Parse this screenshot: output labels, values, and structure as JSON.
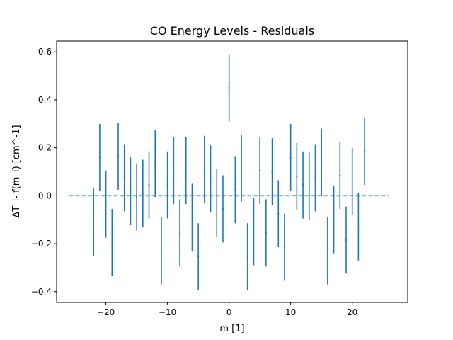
{
  "chart_data": {
    "type": "scatter",
    "title": "CO Energy Levels - Residuals",
    "xlabel": "m [1]",
    "ylabel": "ΔT_i- f(m_i) [cm^-1]",
    "xlim": [
      -28,
      29
    ],
    "ylim": [
      -0.445,
      0.645
    ],
    "xticks": [
      -20,
      -10,
      0,
      10,
      20
    ],
    "xtick_labels": [
      "−20",
      "−10",
      "0",
      "10",
      "20"
    ],
    "yticks": [
      -0.4,
      -0.2,
      0.0,
      0.2,
      0.4,
      0.6
    ],
    "ytick_labels": [
      "−0.4",
      "−0.2",
      "0.0",
      "0.2",
      "0.4",
      "0.6"
    ],
    "grid": false,
    "series": [
      {
        "color": "#1f77b4",
        "points": [
          {
            "x": -22,
            "y": -0.11,
            "err": 0.14
          },
          {
            "x": -21,
            "y": 0.16,
            "err": 0.14
          },
          {
            "x": -20,
            "y": -0.035,
            "err": 0.14
          },
          {
            "x": -19,
            "y": -0.195,
            "err": 0.14
          },
          {
            "x": -18,
            "y": 0.165,
            "err": 0.14
          },
          {
            "x": -17,
            "y": 0.075,
            "err": 0.14
          },
          {
            "x": -16,
            "y": 0.02,
            "err": 0.14
          },
          {
            "x": -15,
            "y": -0.005,
            "err": 0.14
          },
          {
            "x": -14,
            "y": 0.01,
            "err": 0.14
          },
          {
            "x": -13,
            "y": 0.045,
            "err": 0.14
          },
          {
            "x": -12,
            "y": 0.135,
            "err": 0.14
          },
          {
            "x": -11,
            "y": -0.23,
            "err": 0.14
          },
          {
            "x": -10,
            "y": 0.045,
            "err": 0.14
          },
          {
            "x": -9,
            "y": 0.105,
            "err": 0.14
          },
          {
            "x": -8,
            "y": -0.155,
            "err": 0.14
          },
          {
            "x": -7,
            "y": 0.105,
            "err": 0.14
          },
          {
            "x": -6,
            "y": -0.09,
            "err": 0.14
          },
          {
            "x": -5,
            "y": -0.255,
            "err": 0.14
          },
          {
            "x": -4,
            "y": 0.11,
            "err": 0.14
          },
          {
            "x": -3,
            "y": 0.07,
            "err": 0.14
          },
          {
            "x": -2,
            "y": -0.03,
            "err": 0.14
          },
          {
            "x": -1,
            "y": -0.055,
            "err": 0.14
          },
          {
            "x": 0,
            "y": 0.45,
            "err": 0.14
          },
          {
            "x": 1,
            "y": 0.025,
            "err": 0.14
          },
          {
            "x": 2,
            "y": 0.115,
            "err": 0.14
          },
          {
            "x": 3,
            "y": -0.255,
            "err": 0.14
          },
          {
            "x": 4,
            "y": -0.15,
            "err": 0.14
          },
          {
            "x": 5,
            "y": 0.105,
            "err": 0.14
          },
          {
            "x": 6,
            "y": -0.155,
            "err": 0.14
          },
          {
            "x": 7,
            "y": 0.1,
            "err": 0.14
          },
          {
            "x": 8,
            "y": -0.075,
            "err": 0.14
          },
          {
            "x": 9,
            "y": -0.215,
            "err": 0.14
          },
          {
            "x": 10,
            "y": 0.16,
            "err": 0.14
          },
          {
            "x": 11,
            "y": 0.08,
            "err": 0.14
          },
          {
            "x": 12,
            "y": 0.045,
            "err": 0.14
          },
          {
            "x": 13,
            "y": 0.04,
            "err": 0.14
          },
          {
            "x": 14,
            "y": 0.075,
            "err": 0.14
          },
          {
            "x": 15,
            "y": 0.14,
            "err": 0.14
          },
          {
            "x": 16,
            "y": -0.23,
            "err": 0.14
          },
          {
            "x": 17,
            "y": -0.1,
            "err": 0.14
          },
          {
            "x": 18,
            "y": 0.085,
            "err": 0.14
          },
          {
            "x": 19,
            "y": -0.185,
            "err": 0.14
          },
          {
            "x": 20,
            "y": 0.06,
            "err": 0.14
          },
          {
            "x": 21,
            "y": -0.13,
            "err": 0.14
          },
          {
            "x": 22,
            "y": 0.185,
            "err": 0.14
          }
        ]
      }
    ],
    "reference_line": {
      "y": 0,
      "x_range": [
        -26,
        26
      ],
      "style": "dashed",
      "color": "#1f77b4"
    }
  }
}
